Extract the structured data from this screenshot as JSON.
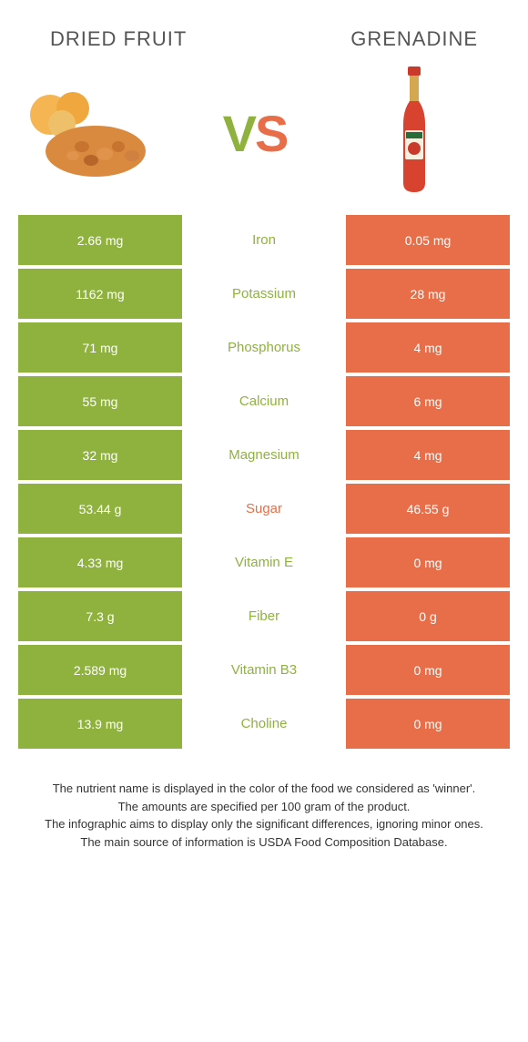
{
  "header": {
    "left_title": "DRIED FRUIT",
    "right_title": "GRENADINE"
  },
  "vs": {
    "v": "V",
    "s": "S"
  },
  "colors": {
    "left": "#8fb23f",
    "right": "#e86e4a",
    "text": "#333333"
  },
  "rows": [
    {
      "left": "2.66 mg",
      "label": "Iron",
      "right": "0.05 mg",
      "winner": "left"
    },
    {
      "left": "1162 mg",
      "label": "Potassium",
      "right": "28 mg",
      "winner": "left"
    },
    {
      "left": "71 mg",
      "label": "Phosphorus",
      "right": "4 mg",
      "winner": "left"
    },
    {
      "left": "55 mg",
      "label": "Calcium",
      "right": "6 mg",
      "winner": "left"
    },
    {
      "left": "32 mg",
      "label": "Magnesium",
      "right": "4 mg",
      "winner": "left"
    },
    {
      "left": "53.44 g",
      "label": "Sugar",
      "right": "46.55 g",
      "winner": "right"
    },
    {
      "left": "4.33 mg",
      "label": "Vitamin E",
      "right": "0 mg",
      "winner": "left"
    },
    {
      "left": "7.3 g",
      "label": "Fiber",
      "right": "0 g",
      "winner": "left"
    },
    {
      "left": "2.589 mg",
      "label": "Vitamin B3",
      "right": "0 mg",
      "winner": "left"
    },
    {
      "left": "13.9 mg",
      "label": "Choline",
      "right": "0 mg",
      "winner": "left"
    }
  ],
  "footer": {
    "line1": "The nutrient name is displayed in the color of the food we considered as 'winner'.",
    "line2": "The amounts are specified per 100 gram of the product.",
    "line3": "The infographic aims to display only the significant differences, ignoring minor ones.",
    "line4": "The main source of information is USDA Food Composition Database."
  }
}
